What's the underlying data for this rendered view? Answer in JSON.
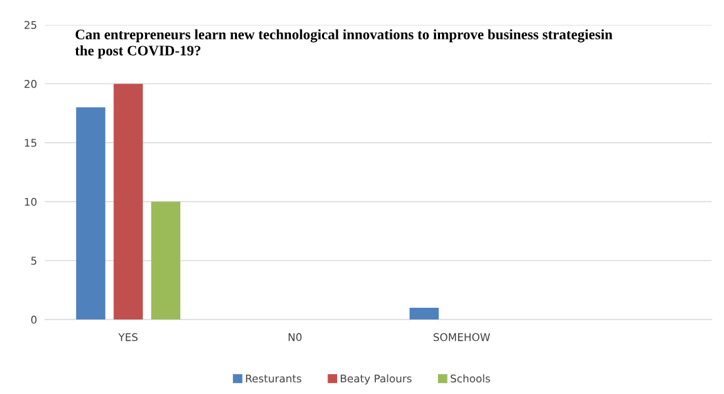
{
  "chart_data": {
    "type": "bar",
    "title": "Can entrepreneurs learn new technological innovations to improve business strategiesin the post COVID-19?",
    "categories": [
      "YES",
      "N0",
      "SOMEHOW",
      null
    ],
    "series": [
      {
        "name": "Resturants",
        "color": "#4f81bd",
        "values": [
          18,
          0,
          1,
          null
        ]
      },
      {
        "name": "Beaty Palours",
        "color": "#c0504d",
        "values": [
          20,
          0,
          0,
          null
        ]
      },
      {
        "name": "Schools",
        "color": "#9bbb59",
        "values": [
          10,
          0,
          0,
          null
        ]
      }
    ],
    "ylim": [
      0,
      25
    ],
    "yticks": [
      0,
      5,
      10,
      15,
      20,
      25
    ],
    "grid": "y",
    "legend": "bottom"
  }
}
